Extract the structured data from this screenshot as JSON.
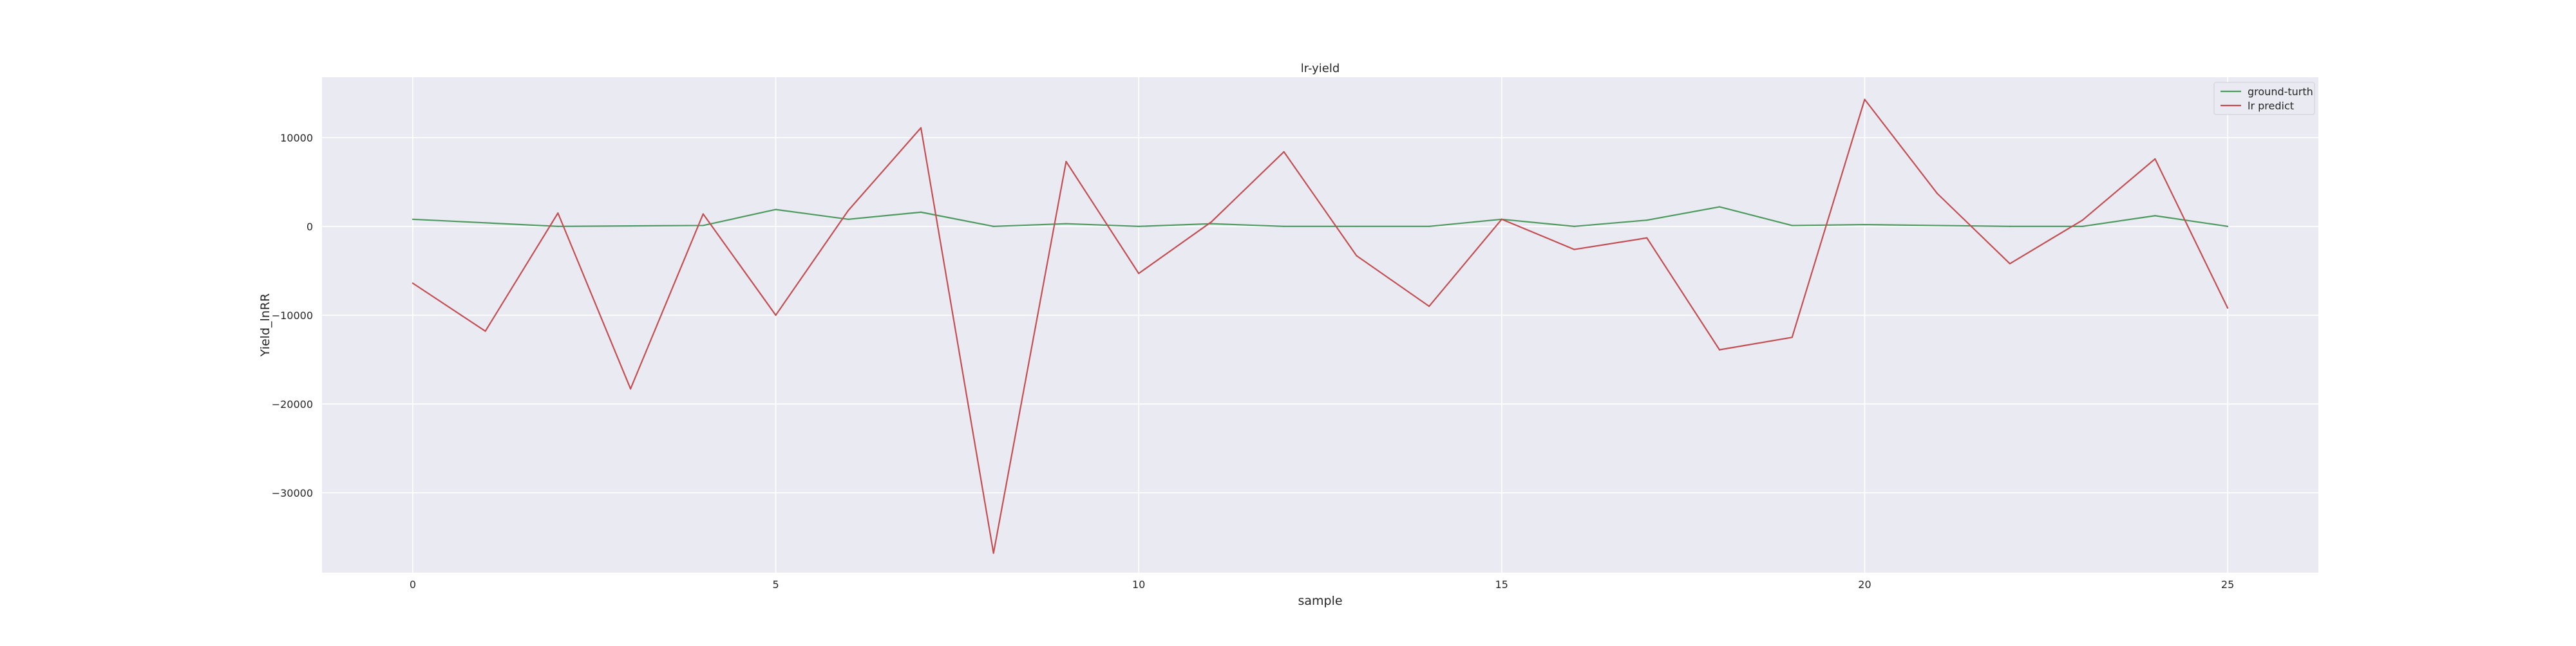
{
  "chart_data": {
    "type": "line",
    "title": "lr-yield",
    "xlabel": "sample",
    "ylabel": "Yield_lnRR",
    "x": [
      0,
      1,
      2,
      3,
      4,
      5,
      6,
      7,
      8,
      9,
      10,
      11,
      12,
      13,
      14,
      15,
      16,
      17,
      18,
      19,
      20,
      21,
      22,
      23,
      24,
      25
    ],
    "xticks": [
      0,
      5,
      10,
      15,
      20,
      25
    ],
    "yticks": [
      -30000,
      -20000,
      -10000,
      0,
      10000
    ],
    "ytick_labels": [
      "−30000",
      "−20000",
      "−10000",
      "0",
      "10000"
    ],
    "xlim": [
      -1.25,
      26.25
    ],
    "ylim": [
      -39000,
      16800
    ],
    "grid": true,
    "legend_position": "top-right",
    "series": [
      {
        "name": "ground-turth",
        "color": "#4c9a5e",
        "values": [
          800,
          400,
          0,
          50,
          100,
          1900,
          800,
          1600,
          0,
          300,
          0,
          300,
          0,
          0,
          0,
          800,
          0,
          700,
          2200,
          100,
          200,
          100,
          0,
          0,
          1200,
          0
        ]
      },
      {
        "name": "lr predict",
        "color": "#c44e52",
        "values": [
          -6400,
          -11800,
          1500,
          -18300,
          1400,
          -10000,
          1800,
          11100,
          -36800,
          7300,
          -5300,
          500,
          8400,
          -3300,
          -9000,
          800,
          -2600,
          -1300,
          -13900,
          -12500,
          14300,
          3700,
          -4200,
          700,
          7600,
          -9200
        ]
      }
    ]
  }
}
